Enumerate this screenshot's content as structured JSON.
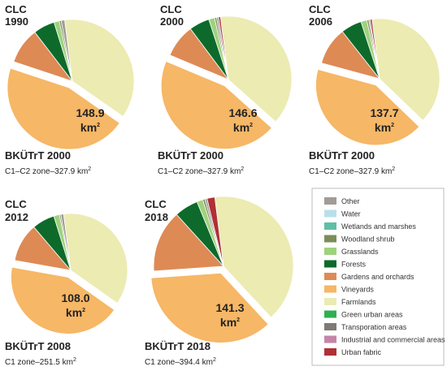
{
  "legend": {
    "items": [
      {
        "name": "Other",
        "color": "#a19c95"
      },
      {
        "name": "Water",
        "color": "#b8e0ea"
      },
      {
        "name": "Wetlands and marshes",
        "color": "#5fbfa6"
      },
      {
        "name": "Woodland shrub",
        "color": "#7c8e57"
      },
      {
        "name": "Grasslands",
        "color": "#9fd27c"
      },
      {
        "name": "Forests",
        "color": "#0e6a2b"
      },
      {
        "name": "Gardens and orchards",
        "color": "#de8a55"
      },
      {
        "name": "Vineyards",
        "color": "#f6b766"
      },
      {
        "name": "Farmlands",
        "color": "#ecebb2"
      },
      {
        "name": "Green urban areas",
        "color": "#2fb04e"
      },
      {
        "name": "Transporation areas",
        "color": "#7f7a74"
      },
      {
        "name": "Industrial and commercial areas",
        "color": "#c585a7"
      },
      {
        "name": "Urban fabric",
        "color": "#b03035"
      }
    ]
  },
  "chart_data": [
    {
      "type": "pie",
      "title_line1": "CLC",
      "title_line2": "1990",
      "highlight_label": "148.9",
      "highlight_unit": "km",
      "highlight_unit_sup": "2",
      "source": "BKÜTrT 2000",
      "zone": "C1–C2 zone–327.9 km",
      "zone_sup": "2",
      "slices": [
        {
          "name": "Farmlands",
          "value": 36.7,
          "color": "#ecebb2"
        },
        {
          "name": "Vineyards",
          "value": 45.4,
          "color": "#f6b766",
          "exploded": true
        },
        {
          "name": "Gardens and orchards",
          "value": 9.5,
          "color": "#de8a55"
        },
        {
          "name": "Forests",
          "value": 5.6,
          "color": "#0e6a2b"
        },
        {
          "name": "Grasslands",
          "value": 1.4,
          "color": "#9fd27c"
        },
        {
          "name": "Woodland shrub",
          "value": 0.5,
          "color": "#7c8e57"
        },
        {
          "name": "Other",
          "value": 0.9,
          "color": "#a19c95"
        }
      ]
    },
    {
      "type": "pie",
      "title_line1": "CLC",
      "title_line2": "2000",
      "highlight_label": "146.6",
      "highlight_unit": "km",
      "highlight_unit_sup": "2",
      "source": "BKÜTrT 2000",
      "zone": "C1–C2 zone–327.9 km",
      "zone_sup": "2",
      "slices": [
        {
          "name": "Farmlands",
          "value": 38.6,
          "color": "#ecebb2"
        },
        {
          "name": "Vineyards",
          "value": 44.7,
          "color": "#f6b766",
          "exploded": true
        },
        {
          "name": "Gardens and orchards",
          "value": 8.5,
          "color": "#de8a55"
        },
        {
          "name": "Forests",
          "value": 5.2,
          "color": "#0e6a2b"
        },
        {
          "name": "Grasslands",
          "value": 1.5,
          "color": "#9fd27c"
        },
        {
          "name": "Woodland shrub",
          "value": 0.5,
          "color": "#7c8e57"
        },
        {
          "name": "Other",
          "value": 0.5,
          "color": "#a19c95"
        },
        {
          "name": "Urban fabric",
          "value": 0.5,
          "color": "#b03035"
        }
      ]
    },
    {
      "type": "pie",
      "title_line1": "CLC",
      "title_line2": "2006",
      "highlight_label": "137.7",
      "highlight_unit": "km",
      "highlight_unit_sup": "2",
      "source": "BKÜTrT 2000",
      "zone": "C1–C2 zone–327.9 km",
      "zone_sup": "2",
      "slices": [
        {
          "name": "Farmlands",
          "value": 39.2,
          "color": "#ecebb2"
        },
        {
          "name": "Vineyards",
          "value": 42.0,
          "color": "#f6b766",
          "exploded": true
        },
        {
          "name": "Gardens and orchards",
          "value": 10.2,
          "color": "#de8a55"
        },
        {
          "name": "Forests",
          "value": 5.6,
          "color": "#0e6a2b"
        },
        {
          "name": "Grasslands",
          "value": 1.6,
          "color": "#9fd27c"
        },
        {
          "name": "Woodland shrub",
          "value": 0.5,
          "color": "#7c8e57"
        },
        {
          "name": "Other",
          "value": 0.4,
          "color": "#a19c95"
        },
        {
          "name": "Urban fabric",
          "value": 0.5,
          "color": "#b03035"
        }
      ]
    },
    {
      "type": "pie",
      "title_line1": "CLC",
      "title_line2": "2012",
      "highlight_label": "108.0",
      "highlight_unit": "km",
      "highlight_unit_sup": "2",
      "source": "BKÜTrT 2008",
      "zone": "C1 zone–251.5 km",
      "zone_sup": "2",
      "slices": [
        {
          "name": "Farmlands",
          "value": 36.8,
          "color": "#ecebb2"
        },
        {
          "name": "Vineyards",
          "value": 43.0,
          "color": "#f6b766",
          "exploded": true
        },
        {
          "name": "Gardens and orchards",
          "value": 11.0,
          "color": "#de8a55"
        },
        {
          "name": "Forests",
          "value": 6.4,
          "color": "#0e6a2b"
        },
        {
          "name": "Grasslands",
          "value": 1.6,
          "color": "#9fd27c"
        },
        {
          "name": "Woodland shrub",
          "value": 0.4,
          "color": "#7c8e57"
        },
        {
          "name": "Other",
          "value": 0.8,
          "color": "#a19c95"
        }
      ]
    },
    {
      "type": "pie",
      "title_line1": "CLC",
      "title_line2": "2018",
      "highlight_label": "141.3",
      "highlight_unit": "km",
      "highlight_unit_sup": "2",
      "source": "BKÜTrT 2018",
      "zone": "C1 zone–394.4 km",
      "zone_sup": "2",
      "slices": [
        {
          "name": "Farmlands",
          "value": 40.1,
          "color": "#ecebb2"
        },
        {
          "name": "Vineyards",
          "value": 35.8,
          "color": "#f6b766",
          "exploded": true
        },
        {
          "name": "Gardens and orchards",
          "value": 14.4,
          "color": "#de8a55"
        },
        {
          "name": "Forests",
          "value": 5.5,
          "color": "#0e6a2b"
        },
        {
          "name": "Grasslands",
          "value": 1.4,
          "color": "#9fd27c"
        },
        {
          "name": "Woodland shrub",
          "value": 0.5,
          "color": "#7c8e57"
        },
        {
          "name": "Other",
          "value": 0.5,
          "color": "#a19c95"
        },
        {
          "name": "Urban fabric",
          "value": 1.8,
          "color": "#b03035"
        }
      ]
    }
  ]
}
